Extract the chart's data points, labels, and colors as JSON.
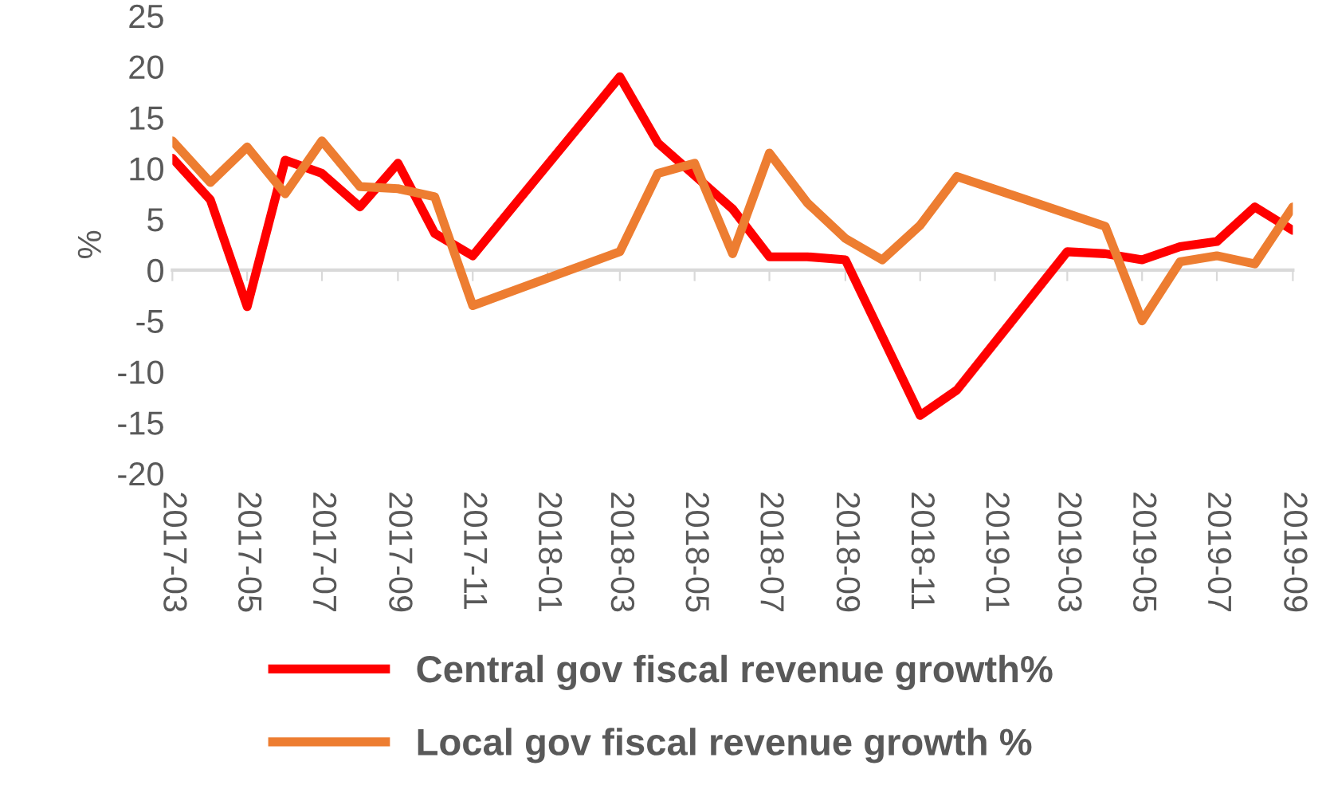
{
  "chart_data": {
    "type": "line",
    "ylabel": "%",
    "ylim": [
      -20,
      25
    ],
    "yticks": [
      -20,
      -15,
      -10,
      -5,
      0,
      5,
      10,
      15,
      20,
      25
    ],
    "xlim": [
      "2017-03",
      "2019-09"
    ],
    "xticks": [
      "2017-03",
      "2017-05",
      "2017-07",
      "2017-09",
      "2017-11",
      "2018-01",
      "2018-03",
      "2018-05",
      "2018-07",
      "2018-09",
      "2018-11",
      "2019-01",
      "2019-03",
      "2019-05",
      "2019-07",
      "2019-09"
    ],
    "legend": "bottom",
    "marker": "none",
    "line_style": "solid",
    "series": [
      {
        "name": "Central gov fiscal revenue growth%",
        "color": "#ff0000",
        "x": [
          "2017-03",
          "2017-04",
          "2017-05",
          "2017-06",
          "2017-07",
          "2017-08",
          "2017-09",
          "2017-10",
          "2017-11",
          "2018-03",
          "2018-04",
          "2018-05",
          "2018-06",
          "2018-07",
          "2018-08",
          "2018-09",
          "2018-11",
          "2018-12",
          "2019-03",
          "2019-04",
          "2019-05",
          "2019-06",
          "2019-07",
          "2019-08",
          "2019-09"
        ],
        "values": [
          11.0,
          6.9,
          -3.6,
          10.8,
          9.5,
          6.2,
          10.5,
          3.6,
          1.4,
          19.0,
          12.5,
          9.3,
          6.0,
          1.3,
          1.3,
          1.0,
          -14.3,
          -11.8,
          1.8,
          1.6,
          1.0,
          2.3,
          2.8,
          6.2,
          3.9
        ]
      },
      {
        "name": "Local gov fiscal revenue growth %",
        "color": "#ed7d31",
        "x": [
          "2017-03",
          "2017-04",
          "2017-05",
          "2017-06",
          "2017-07",
          "2017-08",
          "2017-09",
          "2017-10",
          "2017-11",
          "2018-03",
          "2018-04",
          "2018-05",
          "2018-06",
          "2018-07",
          "2018-08",
          "2018-09",
          "2018-10",
          "2018-11",
          "2018-12",
          "2019-04",
          "2019-05",
          "2019-06",
          "2019-07",
          "2019-08",
          "2019-09"
        ],
        "values": [
          12.7,
          8.6,
          12.1,
          7.5,
          12.7,
          8.2,
          8.0,
          7.2,
          -3.5,
          1.8,
          9.5,
          10.5,
          1.6,
          11.5,
          6.6,
          3.1,
          1.0,
          4.4,
          9.2,
          4.3,
          -5.0,
          0.8,
          1.4,
          0.6,
          6.2
        ]
      }
    ]
  }
}
